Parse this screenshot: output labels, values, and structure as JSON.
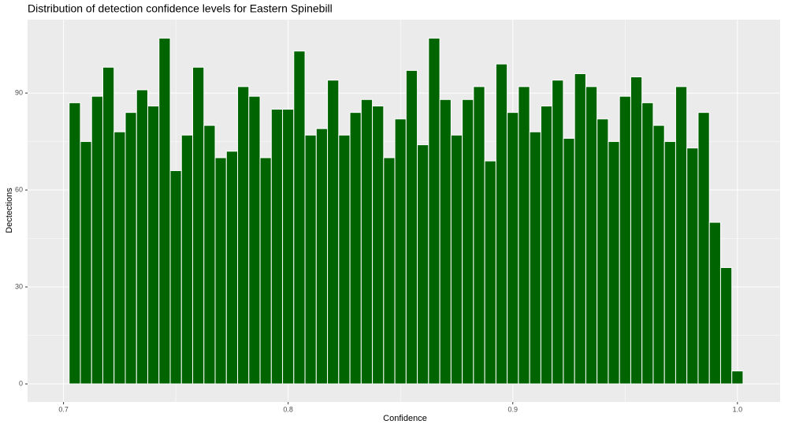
{
  "chart_data": {
    "type": "histogram",
    "title": "Distribution of detection confidence levels for Eastern Spinebill",
    "xlabel": "Confidence",
    "ylabel": "Dectections",
    "bins": [
      0.7025,
      0.7075,
      0.7125,
      0.7175,
      0.7225,
      0.7275,
      0.7325,
      0.7375,
      0.7425,
      0.7475,
      0.7525,
      0.7575,
      0.7625,
      0.7675,
      0.7725,
      0.7775,
      0.7825,
      0.7875,
      0.7925,
      0.7975,
      0.8025,
      0.8075,
      0.8125,
      0.8175,
      0.8225,
      0.8275,
      0.8325,
      0.8375,
      0.8425,
      0.8475,
      0.8525,
      0.8575,
      0.8625,
      0.8675,
      0.8725,
      0.8775,
      0.8825,
      0.8875,
      0.8925,
      0.8975,
      0.9025,
      0.9075,
      0.9125,
      0.9175,
      0.9225,
      0.9275,
      0.9325,
      0.9375,
      0.9425,
      0.9475,
      0.9525,
      0.9575,
      0.9625,
      0.9675,
      0.9725,
      0.9775,
      0.9825,
      0.9875,
      0.9925,
      0.9975,
      1.0025
    ],
    "values": [
      87,
      75,
      89,
      98,
      78,
      84,
      91,
      86,
      107,
      66,
      77,
      98,
      80,
      70,
      72,
      92,
      89,
      70,
      85,
      85,
      103,
      77,
      79,
      94,
      77,
      84,
      88,
      86,
      70,
      82,
      97,
      74,
      107,
      88,
      77,
      88,
      92,
      69,
      99,
      84,
      92,
      78,
      86,
      94,
      76,
      96,
      92,
      82,
      75,
      89,
      95,
      87,
      80,
      75,
      92,
      73,
      84,
      50,
      36,
      4
    ],
    "color": "#006400",
    "xlim": [
      0.684,
      1.019
    ],
    "ylim": [
      -5.6,
      112.7
    ],
    "xticks": [
      0.7,
      0.8,
      0.9,
      {
        "value": 1,
        "label": "1.0"
      }
    ],
    "yticks": [
      0,
      30,
      60,
      90
    ],
    "grid": true
  }
}
